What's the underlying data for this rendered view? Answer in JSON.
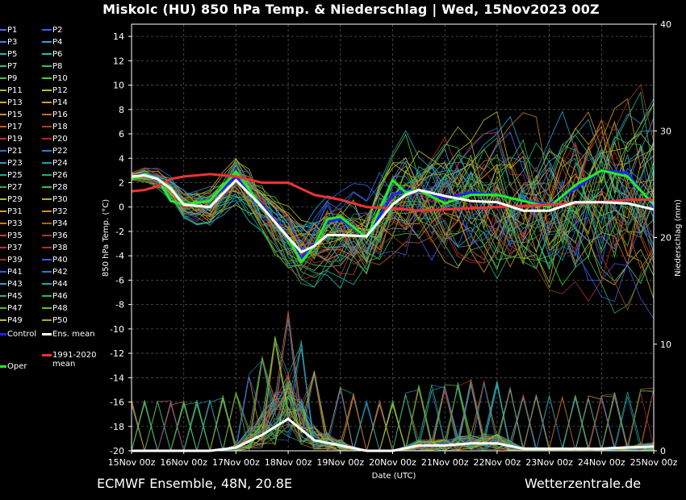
{
  "title": "Miskolc  (HU)  850 hPa Temp. & Niederschlag | Wed, 15Nov2023 00Z",
  "footer": {
    "model": "ECMWF Ensemble, 48N, 20.8E",
    "source": "Wetterzentrale.de"
  },
  "legend": {
    "members": [
      "P1",
      "P2",
      "P3",
      "P4",
      "P5",
      "P6",
      "P7",
      "P8",
      "P9",
      "P10",
      "P11",
      "P12",
      "P13",
      "P14",
      "P15",
      "P16",
      "P17",
      "P18",
      "P19",
      "P20",
      "P21",
      "P22",
      "P23",
      "P24",
      "P25",
      "P26",
      "P27",
      "P28",
      "P29",
      "P30",
      "P31",
      "P32",
      "P33",
      "P34",
      "P35",
      "P36",
      "P37",
      "P38",
      "P39",
      "P40",
      "P41",
      "P42",
      "P43",
      "P44",
      "P45",
      "P46",
      "P47",
      "P48",
      "P49",
      "P50"
    ],
    "member_colors": [
      "#4f6bff",
      "#3a5cff",
      "#3d88d8",
      "#2fa0e0",
      "#30b0c0",
      "#20c0c0",
      "#30c090",
      "#2fc070",
      "#40c050",
      "#50d030",
      "#a0c030",
      "#c0c020",
      "#d0b020",
      "#d0a020",
      "#d09030",
      "#c07020",
      "#c06030",
      "#b04020",
      "#c03030",
      "#c02020",
      "#3070d0",
      "#2080e0",
      "#2a9ad0",
      "#20a0b0",
      "#20b090",
      "#20b070",
      "#30b050",
      "#40c040",
      "#b0c020",
      "#c0b020",
      "#d0a030",
      "#d09020",
      "#c08020",
      "#b06020",
      "#b05020",
      "#a04020",
      "#c03040",
      "#b03030",
      "#a03030",
      "#5050e0",
      "#3060e0",
      "#2080d0",
      "#30a0c0",
      "#20b0a0",
      "#30b080",
      "#20c060",
      "#40c040",
      "#60c030",
      "#c0c030",
      "#c0a020"
    ],
    "control": "Control",
    "ens_mean": "Ens. mean",
    "oper": "Oper",
    "climo_line1": "1991-2020",
    "climo_line2": "mean",
    "colors": {
      "control": "#2020ff",
      "ens_mean": "#ffffff",
      "oper": "#22ee22",
      "climo": "#ee3333"
    }
  },
  "chart_data": {
    "type": "line",
    "xlabel": "Date (UTC)",
    "ylabel_left": "850 hPa Temp. (°C)",
    "ylabel_right": "Niederschlag (mm)",
    "x_ticks": [
      "15Nov 00z",
      "16Nov 00z",
      "17Nov 00z",
      "18Nov 00z",
      "19Nov 00z",
      "20Nov 00z",
      "21Nov 00z",
      "22Nov 00z",
      "23Nov 00z",
      "24Nov 00z",
      "25Nov 00z"
    ],
    "x_range_days": [
      0,
      10
    ],
    "ylim_left": [
      -20,
      15
    ],
    "yticks_left": [
      14,
      12,
      10,
      8,
      6,
      4,
      2,
      0,
      -2,
      -4,
      -6,
      -8,
      -10,
      -12,
      -14,
      -16,
      -18,
      -20
    ],
    "ylim_right": [
      0,
      40
    ],
    "yticks_right": [
      40,
      30,
      20,
      10,
      0
    ],
    "grid": true,
    "series": [
      {
        "name": "Ens. mean",
        "x": [
          0,
          0.25,
          0.5,
          0.75,
          1,
          1.5,
          2,
          2.5,
          3,
          3.25,
          3.5,
          3.75,
          4,
          4.5,
          5,
          5.25,
          5.5,
          6,
          6.5,
          7,
          7.5,
          8,
          8.5,
          9,
          9.5,
          10
        ],
        "values": [
          2.5,
          2.6,
          2.3,
          1.5,
          0.2,
          0,
          2.2,
          0,
          -2.5,
          -3.7,
          -3.2,
          -2.3,
          -2.3,
          -2.4,
          0.2,
          1,
          1.4,
          0.9,
          0.5,
          0.4,
          -0.3,
          -0.3,
          0.4,
          0.4,
          0.3,
          -0.2
        ]
      },
      {
        "name": "Control",
        "x": [
          0,
          0.25,
          0.5,
          0.75,
          1,
          1.5,
          2,
          2.5,
          3,
          3.25,
          3.5,
          3.75,
          4,
          4.5,
          5,
          5.25,
          5.5,
          6,
          6.5,
          7,
          7.5,
          8,
          8.5,
          9,
          9.5,
          10
        ],
        "values": [
          2.5,
          2.7,
          2.2,
          0.5,
          0.2,
          0.5,
          2.5,
          0.2,
          -2.5,
          -4.2,
          -3,
          -1.2,
          -1,
          -2.5,
          1,
          1.4,
          1.3,
          0.7,
          1.2,
          1,
          0.5,
          0.2,
          1.5,
          3,
          2.8,
          0
        ]
      },
      {
        "name": "Oper",
        "x": [
          0,
          0.25,
          0.5,
          0.75,
          1,
          1.5,
          2,
          2.5,
          3,
          3.25,
          3.5,
          3.75,
          4,
          4.5,
          5,
          5.25,
          5.5,
          6,
          6.5,
          7,
          7.5,
          8,
          8.5,
          9,
          9.5,
          10
        ],
        "values": [
          2.3,
          2.7,
          2.3,
          0.5,
          0.2,
          0.5,
          2.9,
          0,
          -2.5,
          -4.5,
          -3.2,
          -1,
          -0.8,
          -2.5,
          2.2,
          1.2,
          1.4,
          0.3,
          1,
          1,
          0.5,
          0,
          1.8,
          3,
          2.5,
          0.2
        ]
      },
      {
        "name": "1991-2020 mean",
        "x": [
          0,
          0.25,
          0.5,
          0.75,
          1,
          1.5,
          2,
          2.5,
          3,
          3.5,
          4,
          4.5,
          5,
          5.5,
          6,
          6.5,
          7,
          7.5,
          8,
          8.5,
          9,
          9.5,
          10
        ],
        "values": [
          1.3,
          1.4,
          1.7,
          2.3,
          2.5,
          2.7,
          2.5,
          2,
          2,
          1,
          0.6,
          0,
          -0.1,
          -0.3,
          -0.2,
          -0.1,
          0,
          0.1,
          0.2,
          0.3,
          0.4,
          0.6,
          0.6
        ]
      }
    ],
    "precip_mean_mm": {
      "x": [
        0,
        1,
        1.5,
        2,
        2.5,
        3,
        3.5,
        4,
        4.5,
        5,
        5.5,
        6,
        6.5,
        7,
        7.5,
        8,
        8.5,
        9,
        9.5,
        10
      ],
      "values": [
        0,
        0,
        0,
        0.3,
        1.5,
        3,
        1,
        0.5,
        0,
        0,
        0.5,
        0.5,
        0.7,
        0.7,
        0.2,
        0.2,
        0.2,
        0.2,
        0.3,
        0.4
      ]
    }
  }
}
